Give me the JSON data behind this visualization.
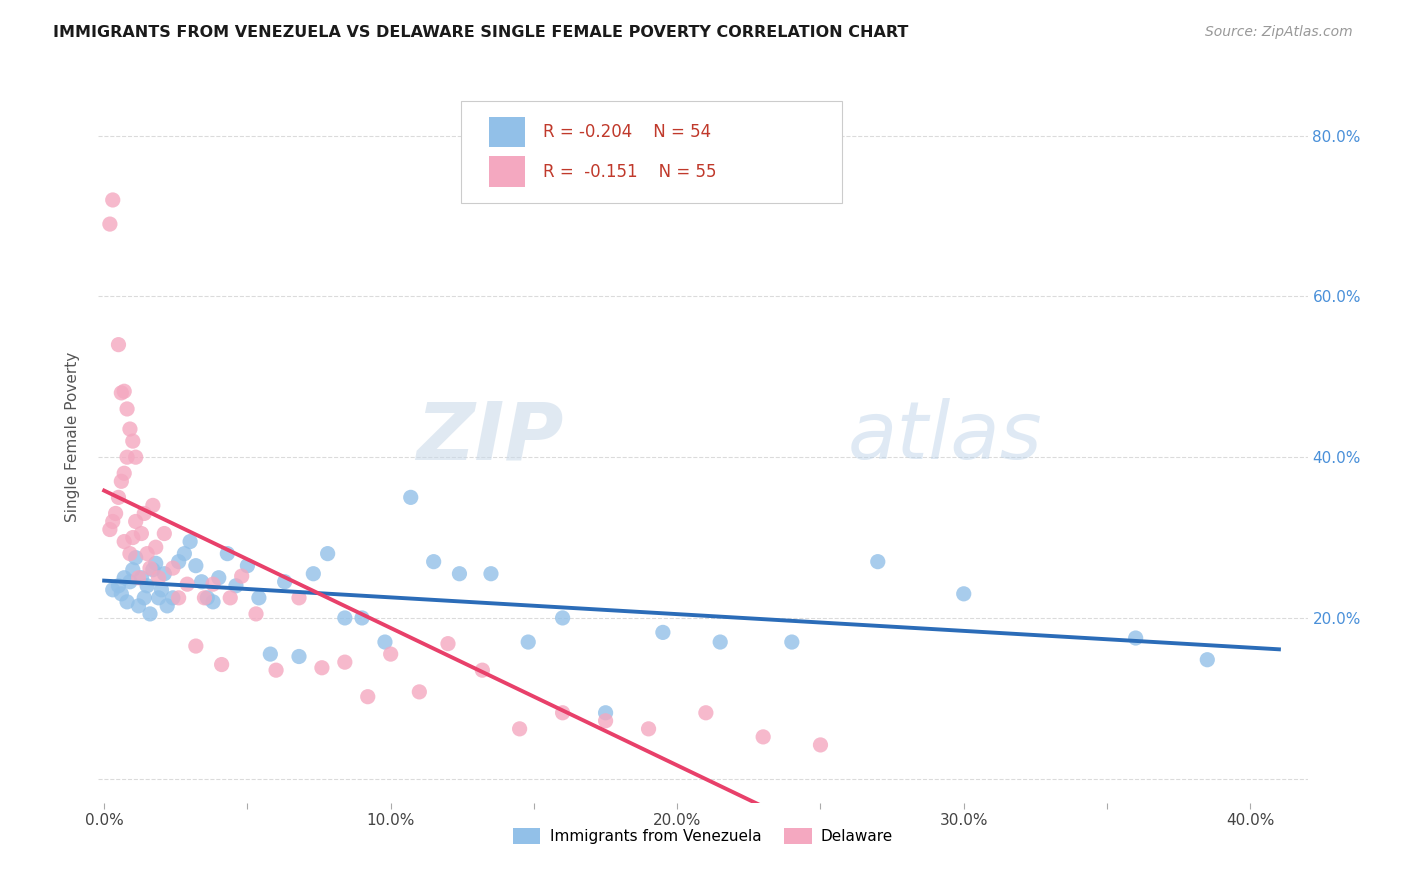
{
  "title": "IMMIGRANTS FROM VENEZUELA VS DELAWARE SINGLE FEMALE POVERTY CORRELATION CHART",
  "source": "Source: ZipAtlas.com",
  "ylabel": "Single Female Poverty",
  "legend_label1": "Immigrants from Venezuela",
  "legend_label2": "Delaware",
  "r1": "-0.204",
  "n1": "54",
  "r2": "-0.151",
  "n2": "55",
  "color1": "#92c0e8",
  "color2": "#f4a8c0",
  "trendline1_color": "#2b6cb8",
  "trendline2_color": "#e8406a",
  "xlim": [
    -0.002,
    0.42
  ],
  "ylim": [
    -0.03,
    0.88
  ],
  "blue_x": [
    0.003,
    0.005,
    0.006,
    0.007,
    0.008,
    0.009,
    0.01,
    0.011,
    0.012,
    0.013,
    0.014,
    0.015,
    0.016,
    0.017,
    0.018,
    0.019,
    0.02,
    0.021,
    0.022,
    0.024,
    0.026,
    0.028,
    0.03,
    0.032,
    0.034,
    0.036,
    0.038,
    0.04,
    0.043,
    0.046,
    0.05,
    0.054,
    0.058,
    0.063,
    0.068,
    0.073,
    0.078,
    0.084,
    0.09,
    0.098,
    0.107,
    0.115,
    0.124,
    0.135,
    0.148,
    0.16,
    0.175,
    0.195,
    0.215,
    0.24,
    0.27,
    0.3,
    0.36,
    0.385
  ],
  "blue_y": [
    0.235,
    0.24,
    0.23,
    0.25,
    0.22,
    0.245,
    0.26,
    0.275,
    0.215,
    0.25,
    0.225,
    0.24,
    0.205,
    0.26,
    0.268,
    0.225,
    0.235,
    0.255,
    0.215,
    0.225,
    0.27,
    0.28,
    0.295,
    0.265,
    0.245,
    0.225,
    0.22,
    0.25,
    0.28,
    0.24,
    0.265,
    0.225,
    0.155,
    0.245,
    0.152,
    0.255,
    0.28,
    0.2,
    0.2,
    0.17,
    0.35,
    0.27,
    0.255,
    0.255,
    0.17,
    0.2,
    0.082,
    0.182,
    0.17,
    0.17,
    0.27,
    0.23,
    0.175,
    0.148
  ],
  "pink_x": [
    0.002,
    0.003,
    0.004,
    0.005,
    0.006,
    0.007,
    0.007,
    0.008,
    0.009,
    0.01,
    0.011,
    0.012,
    0.013,
    0.014,
    0.015,
    0.016,
    0.017,
    0.018,
    0.019,
    0.021,
    0.024,
    0.026,
    0.029,
    0.032,
    0.035,
    0.038,
    0.041,
    0.044,
    0.048,
    0.053,
    0.06,
    0.068,
    0.076,
    0.084,
    0.092,
    0.1,
    0.11,
    0.12,
    0.132,
    0.145,
    0.16,
    0.175,
    0.19,
    0.21,
    0.23,
    0.25,
    0.002,
    0.003,
    0.005,
    0.006,
    0.007,
    0.008,
    0.009,
    0.01,
    0.011
  ],
  "pink_y": [
    0.31,
    0.32,
    0.33,
    0.35,
    0.37,
    0.38,
    0.295,
    0.4,
    0.28,
    0.3,
    0.32,
    0.25,
    0.305,
    0.33,
    0.28,
    0.262,
    0.34,
    0.288,
    0.25,
    0.305,
    0.262,
    0.225,
    0.242,
    0.165,
    0.225,
    0.242,
    0.142,
    0.225,
    0.252,
    0.205,
    0.135,
    0.225,
    0.138,
    0.145,
    0.102,
    0.155,
    0.108,
    0.168,
    0.135,
    0.062,
    0.082,
    0.072,
    0.062,
    0.082,
    0.052,
    0.042,
    0.69,
    0.72,
    0.54,
    0.48,
    0.482,
    0.46,
    0.435,
    0.42,
    0.4
  ]
}
